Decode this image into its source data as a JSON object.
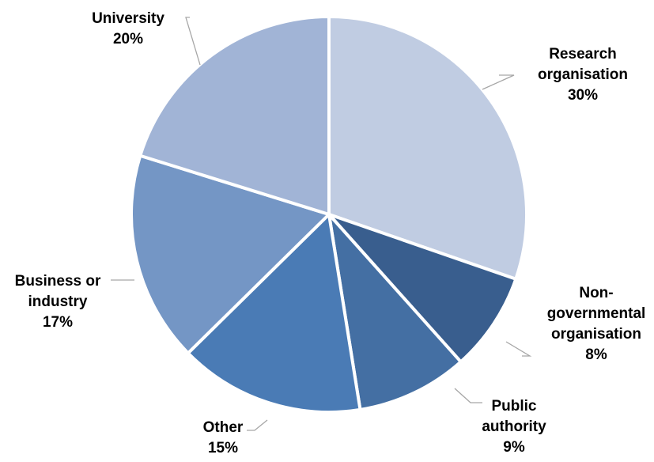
{
  "chart_data": {
    "type": "pie",
    "title": "",
    "slices": [
      {
        "label_lines": [
          "Research",
          "organisation"
        ],
        "value": 30,
        "value_label": "30%",
        "color": "#c0cce2"
      },
      {
        "label_lines": [
          "Non-",
          "governmental",
          "organisation"
        ],
        "value": 8,
        "value_label": "8%",
        "color": "#395e8e"
      },
      {
        "label_lines": [
          "Public",
          "authority"
        ],
        "value": 9,
        "value_label": "9%",
        "color": "#446fa3"
      },
      {
        "label_lines": [
          "Other"
        ],
        "value": 15,
        "value_label": "15%",
        "color": "#4a7bb5"
      },
      {
        "label_lines": [
          "Business or",
          "industry"
        ],
        "value": 17,
        "value_label": "17%",
        "color": "#7496c5"
      },
      {
        "label_lines": [
          "University"
        ],
        "value": 20,
        "value_label": "20%",
        "color": "#a1b4d6"
      }
    ],
    "start_angle_deg": 0,
    "direction": "clockwise",
    "slice_border_color": "#ffffff",
    "leader_line_color": "#a6a6a6",
    "legend": "none"
  }
}
